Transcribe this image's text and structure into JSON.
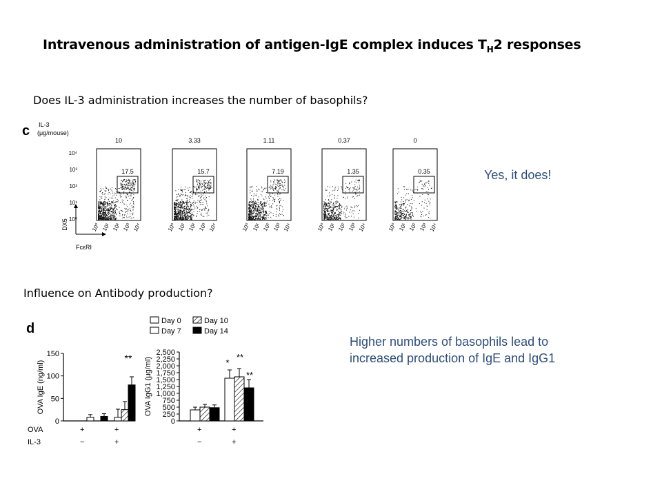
{
  "title": {
    "text": "Intravenous administration of antigen-IgE complex induces T",
    "sub": "H",
    "tail": "2 responses"
  },
  "question1": "Does IL-3 administration increases the number of basophils?",
  "answer1": "Yes, it does!",
  "question2": "Influence on Antibody production?",
  "answer2": "Higher numbers of basophils lead to increased production of IgE and IgG1",
  "panel_c": {
    "letter": "c",
    "dose_label_1": "IL-3",
    "dose_label_2": "(μg/mouse)",
    "doses": [
      "10",
      "3.33",
      "1.11",
      "0.37",
      "0"
    ],
    "gate_values": [
      "17.5",
      "15.7",
      "7.19",
      "1.35",
      "0.35"
    ],
    "y_ticks": [
      "10⁴",
      "10³",
      "10²",
      "10¹",
      "10⁰"
    ],
    "x_ticks": [
      "10⁰",
      "10¹",
      "10²",
      "10³",
      "10⁴"
    ],
    "y_axis": "DX5",
    "x_axis": "FcεRI"
  },
  "panel_d": {
    "letter": "d",
    "legend": [
      "Day 0",
      "Day 10",
      "Day 7",
      "Day 14"
    ],
    "row_labels": [
      "OVA",
      "IL-3"
    ],
    "ova_signs": [
      "+",
      "+"
    ],
    "il3_signs": [
      "−",
      "+"
    ]
  },
  "chart_data": [
    {
      "type": "bar",
      "title": "",
      "ylabel": "OVA IgE (ng/ml)",
      "ylim": [
        0,
        150
      ],
      "yticks": [
        "0",
        "50",
        "100",
        "150"
      ],
      "categories": [
        "OVA + / IL-3 −",
        "OVA + / IL-3 +"
      ],
      "series": [
        {
          "name": "Day 0",
          "values": [
            0,
            0
          ]
        },
        {
          "name": "Day 7",
          "values": [
            8,
            8
          ]
        },
        {
          "name": "Day 10",
          "values": [
            0,
            25
          ]
        },
        {
          "name": "Day 14",
          "values": [
            10,
            80
          ]
        }
      ],
      "annotations": [
        "**"
      ]
    },
    {
      "type": "bar",
      "title": "",
      "ylabel": "OVA IgG1 (μg/ml)",
      "ylim": [
        0,
        2500
      ],
      "yticks": [
        "0",
        "250",
        "500",
        "750",
        "1,000",
        "1,250",
        "1,500",
        "1,750",
        "2,000",
        "2,250",
        "2,500"
      ],
      "categories": [
        "OVA + / IL-3 −",
        "OVA + / IL-3 +"
      ],
      "series": [
        {
          "name": "Day 7",
          "values": [
            400,
            1550
          ]
        },
        {
          "name": "Day 10",
          "values": [
            500,
            1600
          ]
        },
        {
          "name": "Day 14",
          "values": [
            480,
            1200
          ]
        }
      ],
      "annotations": [
        "*",
        "**",
        "**"
      ]
    }
  ]
}
